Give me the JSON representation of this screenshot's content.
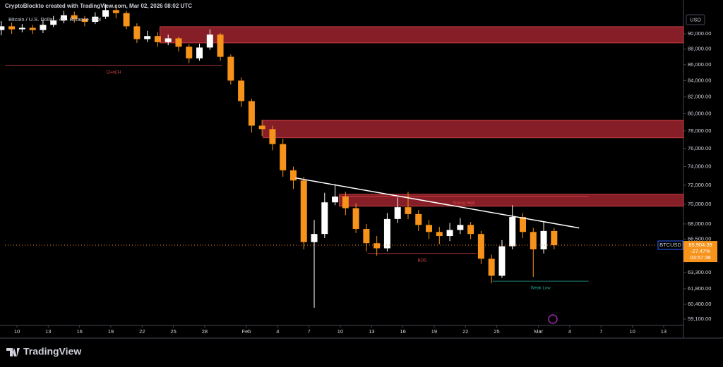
{
  "header": {
    "credit": "CryptoBlockto created with TradingView.com, Mar 02, 2026 08:02 UTC",
    "legend": "Bitcoin / U.S. Dollar · 4h · Binance · Vol",
    "currency": "USD"
  },
  "chart_data": {
    "type": "candlestick",
    "log_scale": true,
    "colors": {
      "up": "#ffffff",
      "down": "#f7931a"
    },
    "xlim": [
      8.85,
      73.9
    ],
    "ylim": [
      58550,
      94600
    ],
    "xticks": [
      10,
      13,
      16,
      19,
      22,
      25,
      28,
      {
        "value": 32,
        "label": "Feb"
      },
      {
        "value": 35,
        "label": "4"
      },
      {
        "value": 38,
        "label": "7"
      },
      {
        "value": 41,
        "label": "10"
      },
      {
        "value": 44,
        "label": "13"
      },
      {
        "value": 47,
        "label": "16"
      },
      {
        "value": 50,
        "label": "19"
      },
      {
        "value": 53,
        "label": "22"
      },
      {
        "value": 56,
        "label": "25"
      },
      {
        "value": 60,
        "label": "Mar"
      },
      {
        "value": 63,
        "label": "4"
      },
      {
        "value": 66,
        "label": "7"
      },
      {
        "value": 69,
        "label": "10"
      },
      {
        "value": 72,
        "label": "13"
      }
    ],
    "yticks": [
      {
        "value": 90000,
        "label": "90,000.00"
      },
      {
        "value": 88000,
        "label": "88,000.00"
      },
      {
        "value": 86000,
        "label": "86,000.00"
      },
      {
        "value": 84000,
        "label": "84,000.00"
      },
      {
        "value": 82000,
        "label": "82,000.00"
      },
      {
        "value": 80000,
        "label": "80,000.00"
      },
      {
        "value": 78000,
        "label": "78,000.00"
      },
      {
        "value": 76000,
        "label": "76,000.00"
      },
      {
        "value": 74000,
        "label": "74,000.00"
      },
      {
        "value": 72000,
        "label": "72,000.00"
      },
      {
        "value": 70000,
        "label": "70,000.00"
      },
      {
        "value": 68000,
        "label": "68,000.00"
      },
      {
        "value": 66500,
        "label": "66,500.00"
      },
      {
        "value": 63300,
        "label": "63,300.00"
      },
      {
        "value": 61800,
        "label": "61,800.00"
      },
      {
        "value": 60400,
        "label": "60,400.00"
      },
      {
        "value": 59100,
        "label": "59,100.00"
      }
    ],
    "x": [
      8.5,
      9.5,
      10.5,
      11.5,
      12.5,
      13.5,
      14.5,
      15.5,
      16.5,
      17.5,
      18.5,
      19.5,
      20.5,
      21.5,
      22.5,
      23.5,
      24.5,
      25.5,
      26.5,
      27.5,
      28.5,
      29.5,
      30.5,
      31.5,
      32.5,
      33.5,
      34.5,
      35.5,
      36.5,
      37.5,
      38.5,
      39.5,
      40.5,
      41.5,
      42.5,
      43.5,
      44.5,
      45.5,
      46.5,
      47.5,
      48.5,
      49.5,
      50.5,
      51.5,
      52.5,
      53.5,
      54.5,
      55.5,
      56.5,
      57.5,
      58.5,
      59.5,
      60.5,
      61.5
    ],
    "open": [
      90500,
      91000,
      90600,
      90800,
      90500,
      91200,
      91800,
      92500,
      92000,
      91600,
      92300,
      93200,
      92800,
      91000,
      89300,
      89700,
      88900,
      89400,
      88300,
      86800,
      88200,
      89900,
      87000,
      84000,
      81500,
      78600,
      78200,
      76500,
      73600,
      72500,
      66200,
      67000,
      70200,
      70800,
      69600,
      67500,
      66100,
      65600,
      68500,
      69700,
      69000,
      67900,
      67200,
      66800,
      67400,
      67900,
      67000,
      64600,
      63000,
      65800,
      68700,
      67200,
      65500,
      67300
    ],
    "high": [
      91700,
      91500,
      91300,
      91200,
      91900,
      92400,
      93100,
      93000,
      92400,
      92900,
      94000,
      93800,
      93100,
      91400,
      90400,
      90200,
      89900,
      89600,
      88600,
      88700,
      90600,
      90100,
      87300,
      84400,
      81800,
      79300,
      78600,
      77100,
      74000,
      72900,
      68400,
      71200,
      72100,
      71300,
      70100,
      68000,
      66800,
      69100,
      70700,
      71300,
      69400,
      68400,
      67700,
      68100,
      68600,
      68200,
      67300,
      65000,
      66400,
      69900,
      69100,
      67600,
      68200,
      67600
    ],
    "low": [
      89800,
      90000,
      90200,
      90000,
      90100,
      90900,
      91400,
      91500,
      91000,
      91300,
      92000,
      92100,
      90600,
      88800,
      88900,
      88300,
      88500,
      87700,
      86200,
      86500,
      87900,
      86500,
      83500,
      80800,
      77800,
      77400,
      75800,
      72900,
      71600,
      65500,
      60100,
      66600,
      69900,
      68900,
      67100,
      65300,
      64900,
      65300,
      68100,
      68500,
      67300,
      66500,
      66000,
      66300,
      67000,
      66500,
      64100,
      62300,
      62800,
      65500,
      66600,
      62900,
      65100,
      65500
    ],
    "close": [
      91000,
      90600,
      90800,
      90500,
      91200,
      91800,
      92500,
      92000,
      91600,
      92300,
      93200,
      92800,
      91000,
      89300,
      89700,
      88900,
      89400,
      88300,
      86800,
      88200,
      89900,
      87000,
      84000,
      81500,
      78600,
      78200,
      76500,
      73600,
      72500,
      66200,
      67000,
      70200,
      70800,
      69600,
      67500,
      66100,
      65600,
      68500,
      69700,
      69000,
      67900,
      67200,
      66800,
      67400,
      67900,
      67000,
      64600,
      63000,
      65800,
      68700,
      67200,
      65500,
      67300,
      65904.39
    ],
    "zones": [
      {
        "low": 88800,
        "high": 90950,
        "from": 23.7
      },
      {
        "low": 77200,
        "high": 79250,
        "from": 33.6
      },
      {
        "low": 69800,
        "high": 71050,
        "from": 40.9
      }
    ],
    "levels": [
      {
        "label": "CHoCH",
        "value": 85900,
        "from": 8.85,
        "to": 29.7,
        "color": "#e0474c"
      },
      {
        "label": "BOS",
        "value": 65100,
        "from": 43.6,
        "to": 54.1,
        "color": "#e0474c"
      },
      {
        "label": "Strong High",
        "value": 70830,
        "from": 40.9,
        "to": 64.8,
        "color": "#e0474c"
      },
      {
        "label": "Weak Low",
        "value": 62500,
        "from": 55.6,
        "to": 64.8,
        "color": "#26a69a"
      }
    ],
    "trendline": {
      "x": [
        36.7,
        63.9
      ],
      "values": [
        72770,
        67600
      ],
      "color": "#ffffff"
    },
    "price_tag": {
      "symbol": "BTCUSD",
      "price": {
        "value": 65904.39,
        "label": "65,904.39"
      },
      "change": "-27.47%",
      "countdown": "03:57:39"
    }
  },
  "footer": {
    "brand": "TradingView"
  }
}
